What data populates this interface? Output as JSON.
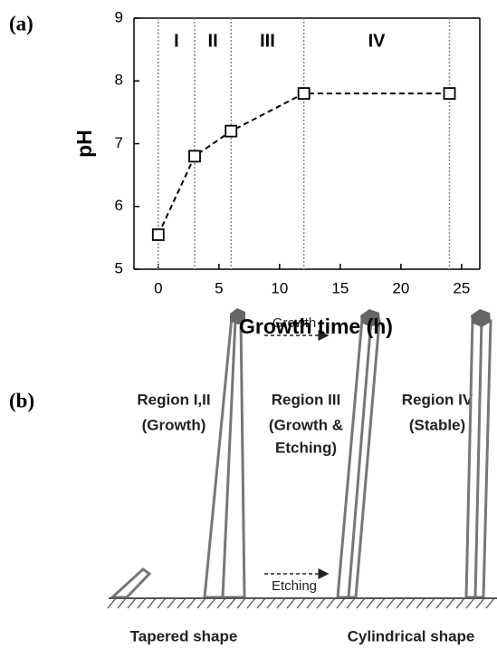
{
  "panel_labels": [
    "(a)",
    "(b)"
  ],
  "chart_data": {
    "type": "line",
    "xlabel": "Growth time (h)",
    "ylabel": "pH",
    "x": [
      0,
      3,
      6,
      12,
      24
    ],
    "values": [
      5.55,
      6.8,
      7.2,
      7.8,
      7.8
    ],
    "color": "#000000",
    "line_style": "dashed",
    "marker": "square",
    "xlim": [
      -2,
      26.5
    ],
    "ylim": [
      5,
      9
    ],
    "xticks": [
      0,
      5,
      10,
      15,
      20,
      25
    ],
    "yticks": [
      5,
      6,
      7,
      8,
      9
    ],
    "grid": false,
    "regions": [
      {
        "label": "I",
        "start": 0,
        "end": 3
      },
      {
        "label": "II",
        "start": 3,
        "end": 6
      },
      {
        "label": "III",
        "start": 6,
        "end": 12
      },
      {
        "label": "IV",
        "start": 12,
        "end": 24
      }
    ]
  },
  "diagram": {
    "columns": [
      {
        "title": "Region I,II",
        "lines": [
          "(Growth)"
        ]
      },
      {
        "title": "Region III",
        "lines": [
          "(Growth &",
          "Etching)"
        ]
      },
      {
        "title": "Region IV",
        "lines": [
          "(Stable)"
        ]
      }
    ],
    "arrows": [
      "Growth",
      "Etching"
    ],
    "shapes": [
      "Tapered shape",
      "Cylindrical shape"
    ]
  }
}
